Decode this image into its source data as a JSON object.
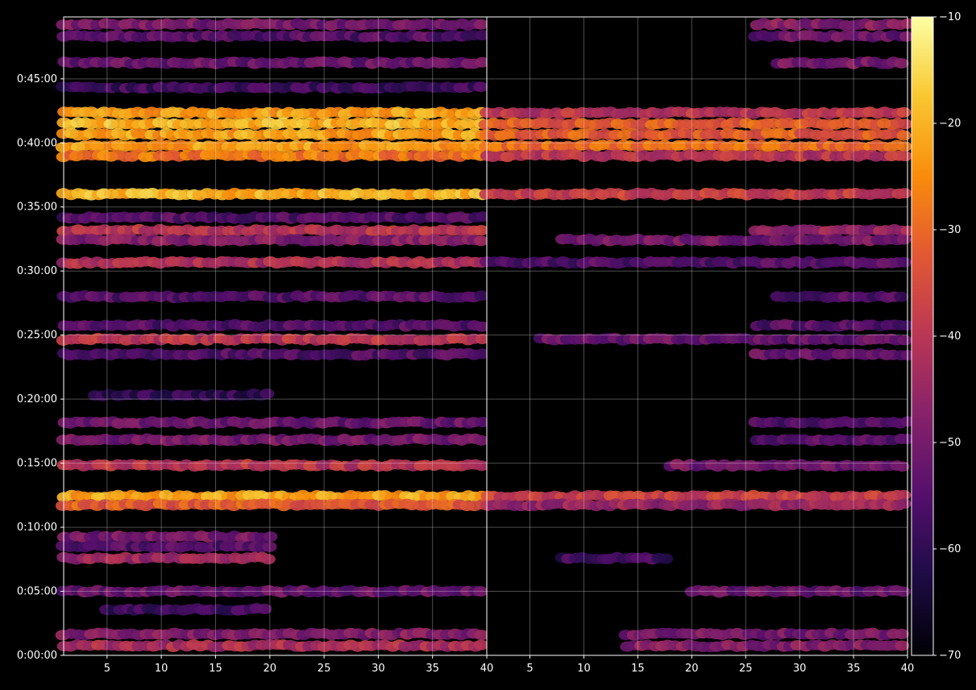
{
  "chart_data": {
    "type": "heatmap",
    "colormap": "inferno",
    "background": "#000000",
    "text_color": "#ffffff",
    "grid": true,
    "legend": "colorbar-right",
    "y_axis": {
      "range_seconds": [
        0,
        2990
      ],
      "ticks": [
        {
          "value": 0,
          "label": "0:00:00"
        },
        {
          "value": 300,
          "label": "0:05:00"
        },
        {
          "value": 600,
          "label": "0:10:00"
        },
        {
          "value": 900,
          "label": "0:15:00"
        },
        {
          "value": 1200,
          "label": "0:20:00"
        },
        {
          "value": 1500,
          "label": "0:25:00"
        },
        {
          "value": 1800,
          "label": "0:30:00"
        },
        {
          "value": 2100,
          "label": "0:35:00"
        },
        {
          "value": 2400,
          "label": "0:40:00"
        },
        {
          "value": 2700,
          "label": "0:45:00"
        }
      ]
    },
    "colorbar": {
      "range": [
        -70,
        -10
      ],
      "ticks": [
        {
          "value": -10,
          "label": "−10"
        },
        {
          "value": -20,
          "label": "−20"
        },
        {
          "value": -30,
          "label": "−30"
        },
        {
          "value": -40,
          "label": "−40"
        },
        {
          "value": -50,
          "label": "−50"
        },
        {
          "value": -60,
          "label": "−60"
        },
        {
          "value": -70,
          "label": "−70"
        }
      ]
    },
    "panels": [
      {
        "xlim": [
          1,
          40
        ],
        "x_ticks": [
          {
            "value": 5,
            "label": "5"
          },
          {
            "value": 10,
            "label": "10"
          },
          {
            "value": 15,
            "label": "15"
          },
          {
            "value": 20,
            "label": "20"
          },
          {
            "value": 25,
            "label": "25"
          },
          {
            "value": 30,
            "label": "30"
          },
          {
            "value": 35,
            "label": "35"
          },
          {
            "value": 40,
            "label": "40"
          }
        ],
        "bands": [
          {
            "t": 2955,
            "x": [
              1,
              40
            ],
            "v": -50
          },
          {
            "t": 2900,
            "x": [
              1,
              40
            ],
            "v": -55
          },
          {
            "t": 2775,
            "x": [
              1,
              40
            ],
            "v": -52
          },
          {
            "t": 2660,
            "x": [
              1,
              40
            ],
            "v": -58
          },
          {
            "t": 2540,
            "x": [
              1,
              40
            ],
            "v": -22
          },
          {
            "t": 2490,
            "x": [
              1,
              40
            ],
            "v": -20
          },
          {
            "t": 2440,
            "x": [
              1,
              40
            ],
            "v": -22
          },
          {
            "t": 2385,
            "x": [
              1,
              40
            ],
            "v": -23
          },
          {
            "t": 2340,
            "x": [
              1,
              40
            ],
            "v": -28
          },
          {
            "t": 2160,
            "x": [
              1,
              40
            ],
            "v": -20
          },
          {
            "t": 2050,
            "x": [
              1,
              40
            ],
            "v": -55
          },
          {
            "t": 1990,
            "x": [
              1,
              40
            ],
            "v": -40
          },
          {
            "t": 1945,
            "x": [
              1,
              40
            ],
            "v": -48
          },
          {
            "t": 1840,
            "x": [
              1,
              40
            ],
            "v": -42
          },
          {
            "t": 1680,
            "x": [
              1,
              40
            ],
            "v": -55
          },
          {
            "t": 1545,
            "x": [
              1,
              40
            ],
            "v": -55
          },
          {
            "t": 1480,
            "x": [
              1,
              40
            ],
            "v": -40
          },
          {
            "t": 1410,
            "x": [
              1,
              40
            ],
            "v": -55
          },
          {
            "t": 1220,
            "x": [
              4,
              20
            ],
            "v": -60
          },
          {
            "t": 1090,
            "x": [
              1,
              40
            ],
            "v": -52
          },
          {
            "t": 1010,
            "x": [
              1,
              40
            ],
            "v": -50
          },
          {
            "t": 890,
            "x": [
              1,
              40
            ],
            "v": -40
          },
          {
            "t": 745,
            "x": [
              1,
              40
            ],
            "v": -22
          },
          {
            "t": 705,
            "x": [
              1,
              40
            ],
            "v": -32
          },
          {
            "t": 555,
            "x": [
              1,
              20
            ],
            "v": -50
          },
          {
            "t": 510,
            "x": [
              1,
              20
            ],
            "v": -55
          },
          {
            "t": 455,
            "x": [
              1,
              20
            ],
            "v": -45
          },
          {
            "t": 300,
            "x": [
              1,
              40
            ],
            "v": -52
          },
          {
            "t": 215,
            "x": [
              5,
              20
            ],
            "v": -58
          },
          {
            "t": 100,
            "x": [
              1,
              40
            ],
            "v": -48
          },
          {
            "t": 45,
            "x": [
              1,
              40
            ],
            "v": -42
          }
        ]
      },
      {
        "xlim": [
          1,
          40
        ],
        "x_ticks": [
          {
            "value": 5,
            "label": "5"
          },
          {
            "value": 10,
            "label": "10"
          },
          {
            "value": 15,
            "label": "15"
          },
          {
            "value": 20,
            "label": "20"
          },
          {
            "value": 25,
            "label": "25"
          },
          {
            "value": 30,
            "label": "30"
          },
          {
            "value": 35,
            "label": "35"
          },
          {
            "value": 40,
            "label": "40"
          }
        ],
        "bands": [
          {
            "t": 2955,
            "x": [
              26,
              40
            ],
            "v": -48
          },
          {
            "t": 2900,
            "x": [
              26,
              40
            ],
            "v": -52
          },
          {
            "t": 2775,
            "x": [
              28,
              40
            ],
            "v": -50
          },
          {
            "t": 2540,
            "x": [
              1,
              40
            ],
            "v": -40
          },
          {
            "t": 2490,
            "x": [
              1,
              40
            ],
            "v": -32
          },
          {
            "t": 2440,
            "x": [
              1,
              40
            ],
            "v": -32
          },
          {
            "t": 2385,
            "x": [
              1,
              40
            ],
            "v": -30
          },
          {
            "t": 2340,
            "x": [
              1,
              40
            ],
            "v": -40
          },
          {
            "t": 2160,
            "x": [
              1,
              40
            ],
            "v": -38
          },
          {
            "t": 1990,
            "x": [
              26,
              40
            ],
            "v": -45
          },
          {
            "t": 1945,
            "x": [
              8,
              40
            ],
            "v": -50
          },
          {
            "t": 1840,
            "x": [
              1,
              40
            ],
            "v": -55
          },
          {
            "t": 1680,
            "x": [
              28,
              40
            ],
            "v": -55
          },
          {
            "t": 1545,
            "x": [
              26,
              40
            ],
            "v": -55
          },
          {
            "t": 1480,
            "x": [
              6,
              40
            ],
            "v": -52
          },
          {
            "t": 1410,
            "x": [
              26,
              40
            ],
            "v": -52
          },
          {
            "t": 1090,
            "x": [
              26,
              40
            ],
            "v": -55
          },
          {
            "t": 1010,
            "x": [
              26,
              40
            ],
            "v": -55
          },
          {
            "t": 890,
            "x": [
              18,
              40
            ],
            "v": -50
          },
          {
            "t": 745,
            "x": [
              1,
              40
            ],
            "v": -38
          },
          {
            "t": 705,
            "x": [
              1,
              40
            ],
            "v": -45
          },
          {
            "t": 455,
            "x": [
              8,
              18
            ],
            "v": -58
          },
          {
            "t": 300,
            "x": [
              20,
              40
            ],
            "v": -52
          },
          {
            "t": 100,
            "x": [
              14,
              40
            ],
            "v": -50
          },
          {
            "t": 45,
            "x": [
              14,
              40
            ],
            "v": -48
          }
        ]
      }
    ]
  }
}
